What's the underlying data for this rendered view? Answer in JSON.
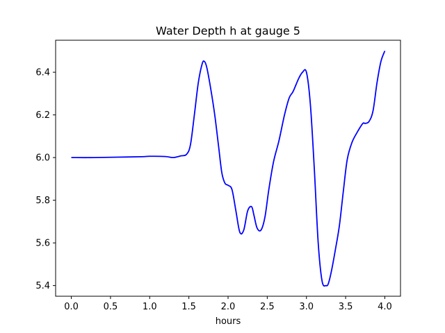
{
  "chart_data": {
    "type": "line",
    "title": "Water Depth h at gauge 5",
    "xlabel": "hours",
    "ylabel": "",
    "xlim": [
      -0.2,
      4.2
    ],
    "ylim": [
      5.35,
      6.55
    ],
    "xticks": [
      0.0,
      0.5,
      1.0,
      1.5,
      2.0,
      2.5,
      3.0,
      3.5,
      4.0
    ],
    "xtick_labels": [
      "0.0",
      "0.5",
      "1.0",
      "1.5",
      "2.0",
      "2.5",
      "3.0",
      "3.5",
      "4.0"
    ],
    "yticks": [
      5.4,
      5.6,
      5.8,
      6.0,
      6.2,
      6.4
    ],
    "ytick_labels": [
      "5.4",
      "5.6",
      "5.8",
      "6.0",
      "6.2",
      "6.4"
    ],
    "grid": false,
    "series": [
      {
        "color": "#0000ff",
        "x": [
          0.0,
          0.3,
          0.6,
          0.9,
          1.0,
          1.2,
          1.3,
          1.4,
          1.47,
          1.52,
          1.57,
          1.62,
          1.67,
          1.7,
          1.73,
          1.78,
          1.83,
          1.88,
          1.92,
          1.96,
          2.0,
          2.05,
          2.1,
          2.15,
          2.2,
          2.25,
          2.3,
          2.33,
          2.37,
          2.42,
          2.47,
          2.52,
          2.58,
          2.65,
          2.72,
          2.78,
          2.83,
          2.9,
          2.95,
          3.0,
          3.05,
          3.1,
          3.15,
          3.2,
          3.25,
          3.28,
          3.32,
          3.37,
          3.42,
          3.47,
          3.52,
          3.58,
          3.65,
          3.72,
          3.75,
          3.8,
          3.85,
          3.9,
          3.95,
          4.0
        ],
        "y": [
          6.0,
          6.0,
          6.002,
          6.004,
          6.006,
          6.005,
          6.0,
          6.008,
          6.015,
          6.06,
          6.2,
          6.35,
          6.44,
          6.45,
          6.42,
          6.32,
          6.2,
          6.05,
          5.93,
          5.88,
          5.87,
          5.85,
          5.75,
          5.65,
          5.66,
          5.75,
          5.77,
          5.73,
          5.67,
          5.66,
          5.72,
          5.85,
          5.98,
          6.08,
          6.2,
          6.28,
          6.31,
          6.37,
          6.4,
          6.4,
          6.25,
          5.95,
          5.6,
          5.42,
          5.4,
          5.41,
          5.47,
          5.57,
          5.68,
          5.84,
          5.99,
          6.07,
          6.12,
          6.16,
          6.16,
          6.17,
          6.22,
          6.35,
          6.45,
          6.5
        ]
      }
    ]
  }
}
